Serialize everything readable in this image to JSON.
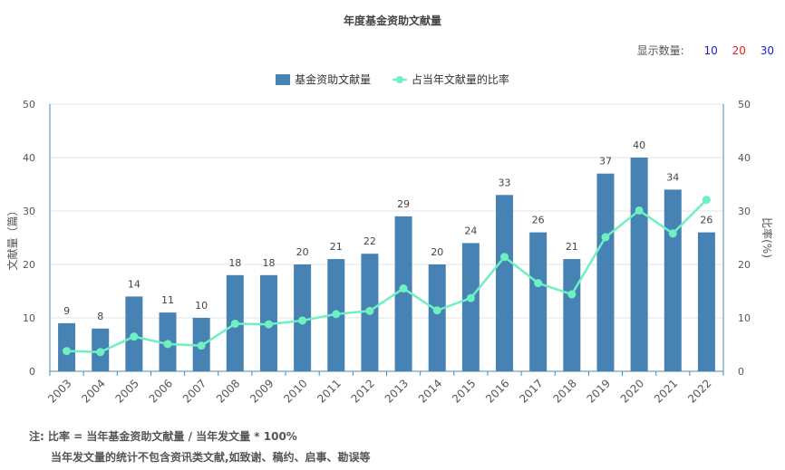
{
  "chart_data": {
    "type": "bar",
    "title": "年度基金资助文献量",
    "categories": [
      "2003",
      "2004",
      "2005",
      "2006",
      "2007",
      "2008",
      "2009",
      "2010",
      "2011",
      "2012",
      "2013",
      "2014",
      "2015",
      "2016",
      "2017",
      "2018",
      "2019",
      "2020",
      "2021",
      "2022"
    ],
    "series": [
      {
        "name": "基金资助文献量",
        "type": "bar",
        "axis": "left",
        "color": "#4682b4",
        "values": [
          9,
          8,
          14,
          11,
          10,
          18,
          18,
          20,
          21,
          22,
          29,
          20,
          24,
          33,
          26,
          21,
          37,
          40,
          34,
          26
        ]
      },
      {
        "name": "占当年文献量的比率",
        "type": "line",
        "axis": "right",
        "color": "#6ef0c1",
        "values": [
          3.8,
          3.6,
          6.5,
          5.1,
          4.8,
          8.9,
          8.8,
          9.5,
          10.7,
          11.3,
          15.5,
          11.4,
          13.7,
          21.4,
          16.5,
          14.4,
          25.1,
          30.1,
          25.8,
          32.1
        ]
      }
    ],
    "ylabel": "文献量（篇）",
    "y2label": "比率(%)",
    "ylim": [
      0,
      50
    ],
    "y2lim": [
      0,
      50
    ],
    "yticks": [
      0,
      10,
      20,
      30,
      40,
      50
    ],
    "y2ticks": [
      0,
      10,
      20,
      30,
      40,
      50
    ],
    "grid": true,
    "legend_position": "top-center"
  },
  "display_count": {
    "label": "显示数量:",
    "options": [
      {
        "label": "10",
        "color": "#1a1ad6"
      },
      {
        "label": "20",
        "color": "#e52020"
      },
      {
        "label": "30",
        "color": "#1a1ad6"
      }
    ]
  },
  "footnote": {
    "line1": "注:   比率 = 当年基金资助文献量 / 当年发文量 * 100%",
    "line2": "当年发文量的统计不包含资讯类文献,如致谢、稿约、启事、勘误等"
  }
}
